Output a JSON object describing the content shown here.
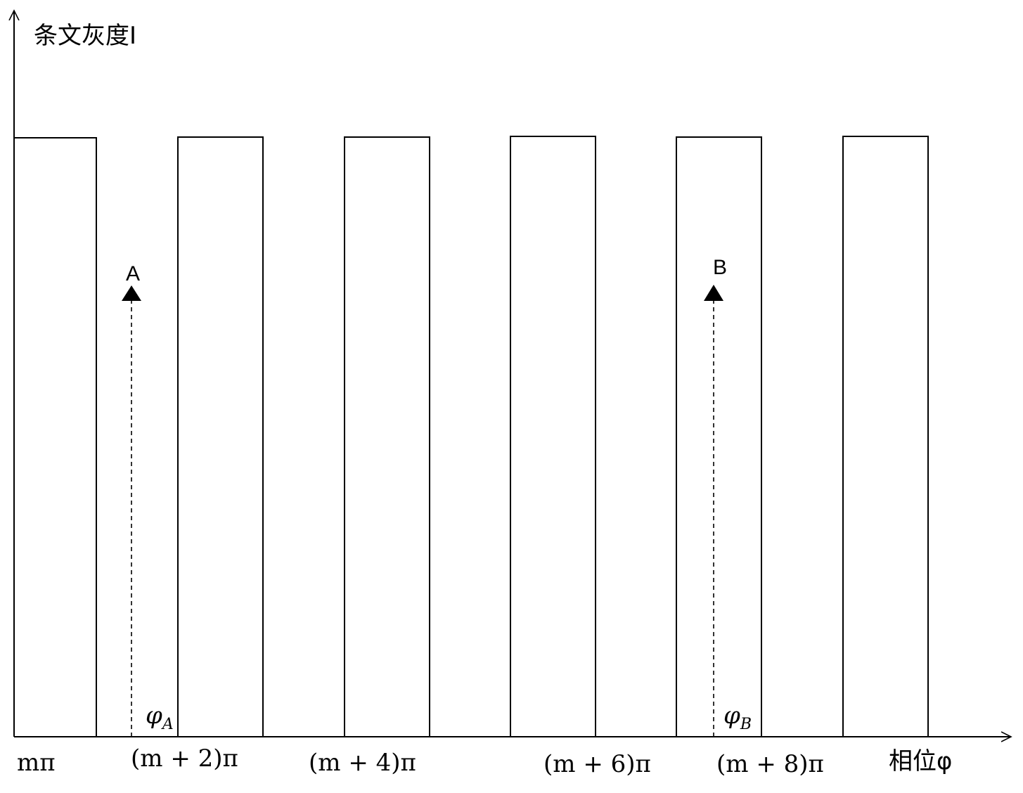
{
  "diagram": {
    "y_axis_label": "条文灰度I",
    "x_axis_label": "相位φ",
    "tick_labels": [
      "mπ",
      "(m + 2)π",
      "(m + 4)π",
      "(m + 6)π",
      "(m + 8)π"
    ],
    "point_a": {
      "label": "A",
      "phase_label": "φ",
      "phase_sub": "A"
    },
    "point_b": {
      "label": "B",
      "phase_label": "φ",
      "phase_sub": "B"
    },
    "colors": {
      "stroke": "#000000",
      "background": "#ffffff"
    }
  }
}
